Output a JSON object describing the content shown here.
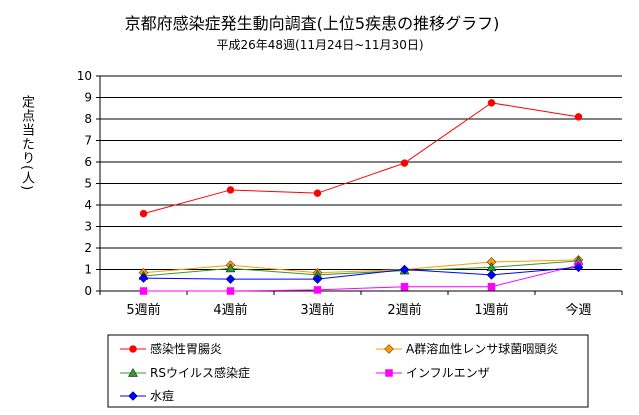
{
  "chart_data": {
    "type": "line",
    "title": "京都府感染症発生動向調査(上位5疾患の推移グラフ)",
    "subtitle": "平成26年48週(11月24日~11月30日)",
    "ylabel": "定点当たり(人)",
    "xlabel": "",
    "categories": [
      "5週前",
      "4週前",
      "3週前",
      "2週前",
      "1週前",
      "今週"
    ],
    "ylim": [
      0,
      10
    ],
    "yticks": [
      0,
      1,
      2,
      3,
      4,
      5,
      6,
      7,
      8,
      9,
      10
    ],
    "grid": true,
    "legend_position": "bottom",
    "series": [
      {
        "name": "感染性胃腸炎",
        "color": "#ff0000",
        "marker": "circle",
        "values": [
          3.6,
          4.7,
          4.55,
          5.95,
          8.75,
          8.1
        ]
      },
      {
        "name": "A群溶血性レンサ球菌咽頭炎",
        "color": "#ff9900",
        "marker": "diamond",
        "values": [
          0.85,
          1.2,
          0.85,
          1.0,
          1.35,
          1.45
        ]
      },
      {
        "name": "RSウイルス感染症",
        "color": "#339933",
        "marker": "triangle",
        "values": [
          0.7,
          1.05,
          0.75,
          0.95,
          1.1,
          1.4
        ]
      },
      {
        "name": "インフルエンザ",
        "color": "#ff00ff",
        "marker": "square",
        "values": [
          0.0,
          0.0,
          0.05,
          0.2,
          0.2,
          1.2
        ]
      },
      {
        "name": "水痘",
        "color": "#0000ff",
        "marker": "diamond",
        "values": [
          0.6,
          0.55,
          0.55,
          1.0,
          0.75,
          1.1
        ]
      }
    ]
  }
}
